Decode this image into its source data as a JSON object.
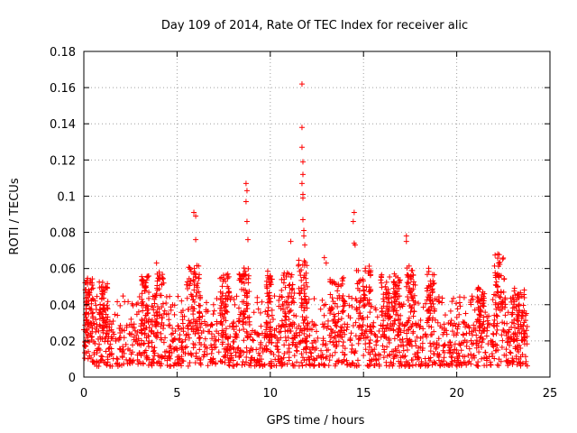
{
  "chart_data": {
    "type": "scatter",
    "title": "Day 109 of 2014, Rate Of TEC Index for receiver alic",
    "xlabel": "GPS time / hours",
    "ylabel": "ROTI / TECUs",
    "xlim": [
      0,
      25
    ],
    "ylim": [
      0,
      0.18
    ],
    "x_ticks": [
      "0",
      "5",
      "10",
      "15",
      "20",
      "25"
    ],
    "y_ticks": [
      "0",
      "0.02",
      "0.04",
      "0.06",
      "0.08",
      "0.1",
      "0.12",
      "0.14",
      "0.16",
      "0.18"
    ],
    "x_tick_values": [
      0,
      5,
      10,
      15,
      20,
      25
    ],
    "y_tick_values": [
      0,
      0.02,
      0.04,
      0.06,
      0.08,
      0.1,
      0.12,
      0.14,
      0.16,
      0.18
    ],
    "grid": true,
    "marker": "+",
    "color": "#ff0000",
    "data_extent_hours": [
      0,
      23.8
    ],
    "baseline_range": [
      0.006,
      0.03
    ],
    "series": [
      {
        "name": "ROTI",
        "notable_points": [
          {
            "x": 5.9,
            "y": 0.091
          },
          {
            "x": 6.0,
            "y": 0.089
          },
          {
            "x": 6.0,
            "y": 0.076
          },
          {
            "x": 8.7,
            "y": 0.107
          },
          {
            "x": 8.75,
            "y": 0.103
          },
          {
            "x": 8.7,
            "y": 0.097
          },
          {
            "x": 8.75,
            "y": 0.086
          },
          {
            "x": 8.8,
            "y": 0.076
          },
          {
            "x": 11.1,
            "y": 0.075
          },
          {
            "x": 11.7,
            "y": 0.162
          },
          {
            "x": 11.7,
            "y": 0.138
          },
          {
            "x": 11.7,
            "y": 0.127
          },
          {
            "x": 11.75,
            "y": 0.119
          },
          {
            "x": 11.75,
            "y": 0.112
          },
          {
            "x": 11.7,
            "y": 0.107
          },
          {
            "x": 11.75,
            "y": 0.101
          },
          {
            "x": 11.75,
            "y": 0.099
          },
          {
            "x": 11.75,
            "y": 0.087
          },
          {
            "x": 11.8,
            "y": 0.081
          },
          {
            "x": 11.8,
            "y": 0.078
          },
          {
            "x": 11.85,
            "y": 0.073
          },
          {
            "x": 14.5,
            "y": 0.091
          },
          {
            "x": 14.45,
            "y": 0.086
          },
          {
            "x": 14.5,
            "y": 0.074
          },
          {
            "x": 14.55,
            "y": 0.073
          },
          {
            "x": 17.3,
            "y": 0.078
          },
          {
            "x": 17.3,
            "y": 0.075
          },
          {
            "x": 22.2,
            "y": 0.068
          },
          {
            "x": 22.25,
            "y": 0.063
          },
          {
            "x": 3.9,
            "y": 0.063
          },
          {
            "x": 12.9,
            "y": 0.066
          },
          {
            "x": 13.0,
            "y": 0.063
          }
        ],
        "activity_bursts": [
          {
            "x_range": [
              0.0,
              0.5
            ],
            "peak": 0.055
          },
          {
            "x_range": [
              0.8,
              1.3
            ],
            "peak": 0.053
          },
          {
            "x_range": [
              3.1,
              3.5
            ],
            "peak": 0.056
          },
          {
            "x_range": [
              3.8,
              4.3
            ],
            "peak": 0.058
          },
          {
            "x_range": [
              5.5,
              6.2
            ],
            "peak": 0.062
          },
          {
            "x_range": [
              7.3,
              7.8
            ],
            "peak": 0.058
          },
          {
            "x_range": [
              8.3,
              8.9
            ],
            "peak": 0.061
          },
          {
            "x_range": [
              9.8,
              10.1
            ],
            "peak": 0.06
          },
          {
            "x_range": [
              10.6,
              11.3
            ],
            "peak": 0.058
          },
          {
            "x_range": [
              11.5,
              12.0
            ],
            "peak": 0.065
          },
          {
            "x_range": [
              13.2,
              14.0
            ],
            "peak": 0.055
          },
          {
            "x_range": [
              14.6,
              15.4
            ],
            "peak": 0.062
          },
          {
            "x_range": [
              15.9,
              16.4
            ],
            "peak": 0.06
          },
          {
            "x_range": [
              16.6,
              17.0
            ],
            "peak": 0.057
          },
          {
            "x_range": [
              17.3,
              17.8
            ],
            "peak": 0.062
          },
          {
            "x_range": [
              18.4,
              18.8
            ],
            "peak": 0.061
          },
          {
            "x_range": [
              21.1,
              21.5
            ],
            "peak": 0.05
          },
          {
            "x_range": [
              22.0,
              22.6
            ],
            "peak": 0.068
          },
          {
            "x_range": [
              22.9,
              23.7
            ],
            "peak": 0.05
          }
        ]
      }
    ]
  }
}
